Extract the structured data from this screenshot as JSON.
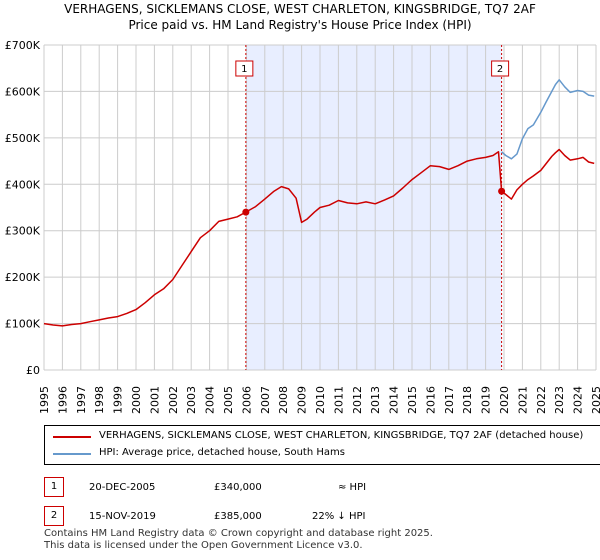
{
  "title_line1": "VERHAGENS, SICKLEMANS CLOSE, WEST CHARLETON, KINGSBRIDGE, TQ7 2AF",
  "title_line2": "Price paid vs. HM Land Registry's House Price Index (HPI)",
  "legend": {
    "property": "VERHAGENS, SICKLEMANS CLOSE, WEST CHARLETON, KINGSBRIDGE, TQ7 2AF (detached house)",
    "hpi": "HPI: Average price, detached house, South Hams"
  },
  "transactions": [
    {
      "num": "1",
      "date": "20-DEC-2005",
      "price": "£340,000",
      "relation": "≈ HPI"
    },
    {
      "num": "2",
      "date": "15-NOV-2019",
      "price": "£385,000",
      "relation": "22% ↓ HPI"
    }
  ],
  "footer": {
    "line1": "Contains HM Land Registry data © Crown copyright and database right 2025.",
    "line2": "This data is licensed under the Open Government Licence v3.0."
  },
  "colors": {
    "property": "#cc0000",
    "hpi": "#6699cc",
    "shade": "#e8eeff",
    "grid": "#cccccc"
  },
  "chart_data": {
    "type": "line",
    "title": "VERHAGENS, SICKLEMANS CLOSE, WEST CHARLETON, KINGSBRIDGE, TQ7 2AF",
    "subtitle": "Price paid vs. HM Land Registry's House Price Index (HPI)",
    "xlim": [
      1995,
      2025
    ],
    "ylim": [
      0,
      700000
    ],
    "y_ticks": [
      0,
      100000,
      200000,
      300000,
      400000,
      500000,
      600000,
      700000
    ],
    "y_tick_labels": [
      "£0",
      "£100K",
      "£200K",
      "£300K",
      "£400K",
      "£500K",
      "£600K",
      "£700K"
    ],
    "x_ticks": [
      1995,
      1996,
      1997,
      1998,
      1999,
      2000,
      2001,
      2002,
      2003,
      2004,
      2005,
      2006,
      2007,
      2008,
      2009,
      2010,
      2011,
      2012,
      2013,
      2014,
      2015,
      2016,
      2017,
      2018,
      2019,
      2020,
      2021,
      2022,
      2023,
      2024,
      2025
    ],
    "x_tick_labels": [
      "1995",
      "1996",
      "1997",
      "1998",
      "1999",
      "2000",
      "2001",
      "2002",
      "2003",
      "2004",
      "2005",
      "2006",
      "2007",
      "2008",
      "2009",
      "2010",
      "2011",
      "2012",
      "2013",
      "2014",
      "2015",
      "2016",
      "2017",
      "2018",
      "2019",
      "2020",
      "2021",
      "2022",
      "2023",
      "2024",
      "2025"
    ],
    "shaded_region": [
      2005.97,
      2019.87
    ],
    "markers": [
      {
        "label": "1",
        "x": 2005.97,
        "y": 340000
      },
      {
        "label": "2",
        "x": 2019.87,
        "y": 385000
      }
    ],
    "series": [
      {
        "name": "VERHAGENS, SICKLEMANS CLOSE, WEST CHARLETON, KINGSBRIDGE, TQ7 2AF (detached house)",
        "color": "#cc0000",
        "x": [
          1995.0,
          1995.5,
          1996.0,
          1996.5,
          1997.0,
          1997.5,
          1998.0,
          1998.5,
          1999.0,
          1999.5,
          2000.0,
          2000.5,
          2001.0,
          2001.5,
          2002.0,
          2002.5,
          2003.0,
          2003.5,
          2004.0,
          2004.5,
          2005.0,
          2005.5,
          2005.97,
          2006.5,
          2007.0,
          2007.5,
          2007.9,
          2008.3,
          2008.7,
          2009.0,
          2009.3,
          2009.7,
          2010.0,
          2010.5,
          2011.0,
          2011.5,
          2012.0,
          2012.5,
          2013.0,
          2013.5,
          2014.0,
          2014.5,
          2015.0,
          2015.5,
          2016.0,
          2016.5,
          2017.0,
          2017.5,
          2018.0,
          2018.5,
          2019.0,
          2019.4,
          2019.7,
          2019.87,
          2020.1,
          2020.4,
          2020.7,
          2021.0,
          2021.3,
          2021.6,
          2022.0,
          2022.3,
          2022.6,
          2022.8,
          2023.0,
          2023.3,
          2023.6,
          2024.0,
          2024.3,
          2024.6,
          2024.9
        ],
        "values": [
          100000,
          97000,
          95000,
          98000,
          100000,
          104000,
          108000,
          112000,
          115000,
          122000,
          130000,
          145000,
          162000,
          175000,
          195000,
          225000,
          255000,
          285000,
          300000,
          320000,
          325000,
          330000,
          340000,
          352000,
          368000,
          385000,
          395000,
          390000,
          370000,
          318000,
          325000,
          340000,
          350000,
          355000,
          365000,
          360000,
          358000,
          362000,
          358000,
          366000,
          375000,
          392000,
          410000,
          425000,
          440000,
          438000,
          432000,
          440000,
          450000,
          455000,
          458000,
          462000,
          470000,
          385000,
          378000,
          368000,
          388000,
          400000,
          410000,
          418000,
          430000,
          445000,
          460000,
          468000,
          475000,
          462000,
          452000,
          455000,
          458000,
          448000,
          445000
        ]
      },
      {
        "name": "HPI: Average price, detached house, South Hams",
        "color": "#6699cc",
        "x": [
          2019.87,
          2020.1,
          2020.4,
          2020.7,
          2021.0,
          2021.3,
          2021.6,
          2022.0,
          2022.3,
          2022.6,
          2022.8,
          2023.0,
          2023.3,
          2023.6,
          2024.0,
          2024.3,
          2024.6,
          2024.9
        ],
        "values": [
          470000,
          462000,
          455000,
          465000,
          498000,
          520000,
          528000,
          555000,
          578000,
          600000,
          615000,
          625000,
          610000,
          598000,
          602000,
          600000,
          592000,
          590000
        ]
      }
    ]
  }
}
